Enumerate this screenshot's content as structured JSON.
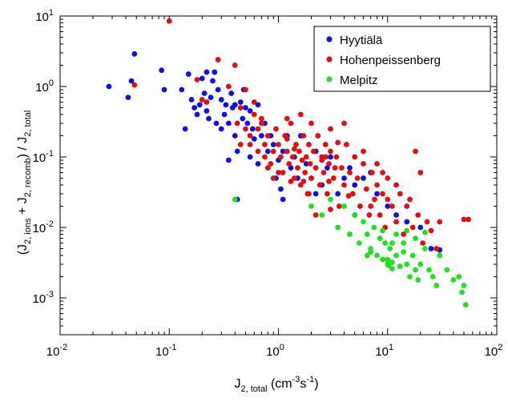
{
  "chart_data": {
    "type": "scatter",
    "x_scale": "log",
    "y_scale": "log",
    "xlim": [
      0.01,
      100
    ],
    "ylim": [
      0.0003,
      10
    ],
    "x_tick_labels": [
      {
        "base": "10",
        "exp": "-2"
      },
      {
        "base": "10",
        "exp": "-1"
      },
      {
        "base": "10",
        "exp": "0"
      },
      {
        "base": "10",
        "exp": "1"
      },
      {
        "base": "10",
        "exp": "2"
      }
    ],
    "y_tick_labels": [
      {
        "base": "10",
        "exp": "-3"
      },
      {
        "base": "10",
        "exp": "-2"
      },
      {
        "base": "10",
        "exp": "-1"
      },
      {
        "base": "10",
        "exp": "0"
      },
      {
        "base": "10",
        "exp": "1"
      }
    ],
    "xlabel": {
      "main": "J",
      "sub": "2, total",
      "unit_open": " (cm",
      "unit_exp1": "-3",
      "unit_mid": "s",
      "unit_exp2": "-1",
      "unit_close": ")"
    },
    "ylabel": {
      "p1": "(J",
      "s1": "2, ions",
      "p2": " + J",
      "s2": "2, recomb",
      "p3": ") / J",
      "s3": "2, total"
    },
    "legend_position": "top-right",
    "grid": false,
    "series": [
      {
        "name": "Hyytiälä",
        "color": "#1010e0",
        "points": [
          [
            0.028,
            1.0
          ],
          [
            0.042,
            0.7
          ],
          [
            0.045,
            1.2
          ],
          [
            0.048,
            2.9
          ],
          [
            0.085,
            1.7
          ],
          [
            0.09,
            0.9
          ],
          [
            0.13,
            0.9
          ],
          [
            0.14,
            0.25
          ],
          [
            0.15,
            1.5
          ],
          [
            0.16,
            0.65
          ],
          [
            0.17,
            0.5
          ],
          [
            0.18,
            0.4
          ],
          [
            0.19,
            0.55
          ],
          [
            0.2,
            1.3
          ],
          [
            0.21,
            0.8
          ],
          [
            0.22,
            0.45
          ],
          [
            0.22,
            1.6
          ],
          [
            0.23,
            0.35
          ],
          [
            0.24,
            0.7
          ],
          [
            0.25,
            1.2
          ],
          [
            0.26,
            1.6
          ],
          [
            0.27,
            0.3
          ],
          [
            0.28,
            0.9
          ],
          [
            0.3,
            0.65
          ],
          [
            0.3,
            0.25
          ],
          [
            0.32,
            0.4
          ],
          [
            0.33,
            0.55
          ],
          [
            0.35,
            0.3
          ],
          [
            0.37,
            0.8
          ],
          [
            0.38,
            0.5
          ],
          [
            0.4,
            0.55
          ],
          [
            0.4,
            0.2
          ],
          [
            0.42,
            0.12
          ],
          [
            0.45,
            0.6
          ],
          [
            0.47,
            0.35
          ],
          [
            0.48,
            0.9
          ],
          [
            0.5,
            0.5
          ],
          [
            0.52,
            0.3
          ],
          [
            0.55,
            0.45
          ],
          [
            0.58,
            0.25
          ],
          [
            0.6,
            0.18
          ],
          [
            0.65,
            0.55
          ],
          [
            0.7,
            0.2
          ],
          [
            0.75,
            0.3
          ],
          [
            0.8,
            0.12
          ],
          [
            0.85,
            0.2
          ],
          [
            0.9,
            0.15
          ],
          [
            1.0,
            0.09
          ],
          [
            1.1,
            0.12
          ],
          [
            1.2,
            0.2
          ],
          [
            1.3,
            0.07
          ],
          [
            1.4,
            0.1
          ],
          [
            1.5,
            0.05
          ],
          [
            1.6,
            0.2
          ],
          [
            1.8,
            0.08
          ],
          [
            2.0,
            0.05
          ],
          [
            2.2,
            0.12
          ],
          [
            2.5,
            0.04
          ],
          [
            2.8,
            0.07
          ],
          [
            3.0,
            0.1
          ],
          [
            3.5,
            0.03
          ],
          [
            4.0,
            0.05
          ],
          [
            4.5,
            0.07
          ],
          [
            5.0,
            0.04
          ],
          [
            6.0,
            0.05
          ],
          [
            7.0,
            0.06
          ],
          [
            8.0,
            0.03
          ],
          [
            10.0,
            0.02
          ],
          [
            12.0,
            0.015
          ],
          [
            15.0,
            0.012
          ],
          [
            20.0,
            0.01
          ],
          [
            25.0,
            0.005
          ],
          [
            30.0,
            0.0048
          ],
          [
            0.42,
            0.025
          ],
          [
            1.1,
            0.025
          ],
          [
            0.35,
            0.09
          ],
          [
            0.55,
            0.1
          ],
          [
            0.65,
            0.08
          ],
          [
            0.95,
            0.05
          ],
          [
            2.2,
            0.03
          ],
          [
            1.05,
            0.035
          ]
        ]
      },
      {
        "name": "Hohenpeissenberg",
        "color": "#e01010",
        "points": [
          [
            0.048,
            1.05
          ],
          [
            0.1,
            8.5
          ],
          [
            0.18,
            1.25
          ],
          [
            0.2,
            0.65
          ],
          [
            0.22,
            0.6
          ],
          [
            0.28,
            2.4
          ],
          [
            0.35,
            1.0
          ],
          [
            0.4,
            2.0
          ],
          [
            0.42,
            0.3
          ],
          [
            0.45,
            0.15
          ],
          [
            0.5,
            0.25
          ],
          [
            0.55,
            0.2
          ],
          [
            0.6,
            0.4
          ],
          [
            0.65,
            0.12
          ],
          [
            0.7,
            0.3
          ],
          [
            0.75,
            0.15
          ],
          [
            0.8,
            0.2
          ],
          [
            0.85,
            0.08
          ],
          [
            0.9,
            0.12
          ],
          [
            0.95,
            0.25
          ],
          [
            1.0,
            0.15
          ],
          [
            1.05,
            0.1
          ],
          [
            1.1,
            0.06
          ],
          [
            1.15,
            0.2
          ],
          [
            1.2,
            0.12
          ],
          [
            1.25,
            0.08
          ],
          [
            1.3,
            0.3
          ],
          [
            1.35,
            0.1
          ],
          [
            1.4,
            0.05
          ],
          [
            1.45,
            0.15
          ],
          [
            1.5,
            0.07
          ],
          [
            1.55,
            0.12
          ],
          [
            1.6,
            0.04
          ],
          [
            1.65,
            0.09
          ],
          [
            1.7,
            0.2
          ],
          [
            1.75,
            0.06
          ],
          [
            1.8,
            0.1
          ],
          [
            1.85,
            0.03
          ],
          [
            1.9,
            0.15
          ],
          [
            1.95,
            0.08
          ],
          [
            2.0,
            0.05
          ],
          [
            2.1,
            0.12
          ],
          [
            2.2,
            0.07
          ],
          [
            2.3,
            0.2
          ],
          [
            2.4,
            0.04
          ],
          [
            2.5,
            0.1
          ],
          [
            2.6,
            0.06
          ],
          [
            2.7,
            0.15
          ],
          [
            2.8,
            0.03
          ],
          [
            2.9,
            0.08
          ],
          [
            3.0,
            0.12
          ],
          [
            3.2,
            0.05
          ],
          [
            3.4,
            0.1
          ],
          [
            3.6,
            0.02
          ],
          [
            3.8,
            0.07
          ],
          [
            4.0,
            0.04
          ],
          [
            4.2,
            0.15
          ],
          [
            4.5,
            0.06
          ],
          [
            4.8,
            0.03
          ],
          [
            5.0,
            0.1
          ],
          [
            5.3,
            0.05
          ],
          [
            5.6,
            0.02
          ],
          [
            6.0,
            0.08
          ],
          [
            6.4,
            0.035
          ],
          [
            6.8,
            0.015
          ],
          [
            7.2,
            0.06
          ],
          [
            7.6,
            0.025
          ],
          [
            8.0,
            0.04
          ],
          [
            8.5,
            0.015
          ],
          [
            9.0,
            0.03
          ],
          [
            9.5,
            0.01
          ],
          [
            10.0,
            0.05
          ],
          [
            11.0,
            0.02
          ],
          [
            12.0,
            0.012
          ],
          [
            13.0,
            0.03
          ],
          [
            14.0,
            0.008
          ],
          [
            15.0,
            0.02
          ],
          [
            17.0,
            0.01
          ],
          [
            19.0,
            0.015
          ],
          [
            21.0,
            0.006
          ],
          [
            23.0,
            0.012
          ],
          [
            25.0,
            0.009
          ],
          [
            28.0,
            0.005
          ],
          [
            50.0,
            0.013
          ],
          [
            55.0,
            0.013
          ],
          [
            0.6,
            0.6
          ],
          [
            0.5,
            0.9
          ],
          [
            0.7,
            0.35
          ],
          [
            1.2,
            0.35
          ],
          [
            1.6,
            0.4
          ],
          [
            2.0,
            0.3
          ],
          [
            3.0,
            0.25
          ],
          [
            4.0,
            0.3
          ],
          [
            20.0,
            0.06
          ],
          [
            18.0,
            0.12
          ],
          [
            2.2,
            0.015
          ],
          [
            3.0,
            0.018
          ],
          [
            1.0,
            0.06
          ],
          [
            1.3,
            0.045
          ],
          [
            0.9,
            0.05
          ],
          [
            5.0,
            0.015
          ],
          [
            7.0,
            0.02
          ],
          [
            9.0,
            0.06
          ],
          [
            12.0,
            0.04
          ],
          [
            8.0,
            0.08
          ],
          [
            0.45,
            0.5
          ],
          [
            0.8,
            0.07
          ],
          [
            1.7,
            0.045
          ],
          [
            2.5,
            0.09
          ],
          [
            3.5,
            0.16
          ],
          [
            6.0,
            0.12
          ],
          [
            4.4,
            0.028
          ],
          [
            3.3,
            0.07
          ],
          [
            2.7,
            0.1
          ],
          [
            1.2,
            0.18
          ],
          [
            0.65,
            0.25
          ],
          [
            0.55,
            0.15
          ],
          [
            0.75,
            0.1
          ],
          [
            1.4,
            0.13
          ],
          [
            1.9,
            0.03
          ],
          [
            2.9,
            0.045
          ],
          [
            10.0,
            0.025
          ],
          [
            16.0,
            0.025
          ],
          [
            30.0,
            0.012
          ]
        ]
      },
      {
        "name": "Melpitz",
        "color": "#20e020",
        "points": [
          [
            0.4,
            0.025
          ],
          [
            2.0,
            0.02
          ],
          [
            2.5,
            0.015
          ],
          [
            3.0,
            0.025
          ],
          [
            3.5,
            0.01
          ],
          [
            4.0,
            0.02
          ],
          [
            4.5,
            0.008
          ],
          [
            5.0,
            0.015
          ],
          [
            5.5,
            0.006
          ],
          [
            6.0,
            0.012
          ],
          [
            6.5,
            0.008
          ],
          [
            7.0,
            0.005
          ],
          [
            7.5,
            0.01
          ],
          [
            8.0,
            0.004
          ],
          [
            8.5,
            0.007
          ],
          [
            9.0,
            0.0035
          ],
          [
            9.5,
            0.006
          ],
          [
            10.0,
            0.003
          ],
          [
            10.5,
            0.005
          ],
          [
            11.0,
            0.0032
          ],
          [
            12.0,
            0.004
          ],
          [
            13.0,
            0.0028
          ],
          [
            14.0,
            0.006
          ],
          [
            15.0,
            0.003
          ],
          [
            16.0,
            0.002
          ],
          [
            17.0,
            0.004
          ],
          [
            18.0,
            0.0025
          ],
          [
            19.0,
            0.0018
          ],
          [
            20.0,
            0.003
          ],
          [
            22.0,
            0.005
          ],
          [
            24.0,
            0.0025
          ],
          [
            26.0,
            0.002
          ],
          [
            28.0,
            0.0015
          ],
          [
            30.0,
            0.004
          ],
          [
            35.0,
            0.0025
          ],
          [
            40.0,
            0.0018
          ],
          [
            45.0,
            0.002
          ],
          [
            48.0,
            0.0012
          ],
          [
            50.0,
            0.0015
          ],
          [
            52.0,
            0.0008
          ],
          [
            12.0,
            0.008
          ],
          [
            15.0,
            0.009
          ],
          [
            18.0,
            0.007
          ],
          [
            22.0,
            0.0085
          ],
          [
            6.5,
            0.004
          ],
          [
            9.0,
            0.009
          ],
          [
            11.0,
            0.006
          ],
          [
            14.0,
            0.0045
          ],
          [
            10.0,
            0.0035
          ],
          [
            10.2,
            0.0029
          ],
          [
            11.0,
            0.0026
          ],
          [
            7.0,
            0.0045
          ]
        ]
      }
    ]
  }
}
